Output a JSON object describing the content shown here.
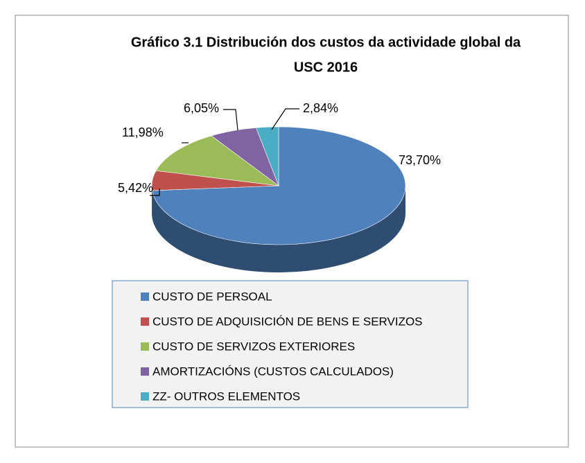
{
  "chart_data": {
    "type": "pie",
    "title": "Gráfico 3.1 Distribución dos custos da actividade global da USC 2016",
    "categories": [
      "CUSTO DE PERSOAL",
      "CUSTO DE ADQUISICIÓN DE BENS E SERVIZOS",
      "CUSTO DE SERVIZOS EXTERIORES",
      "AMORTIZACIÓNS (CUSTOS CALCULADOS)",
      "ZZ- OUTROS ELEMENTOS"
    ],
    "values": [
      73.7,
      5.42,
      11.98,
      6.05,
      2.84
    ],
    "value_labels": [
      "73,70%",
      "5,42%",
      "11,98%",
      "6,05%",
      "2,84%"
    ],
    "colors": [
      "#4f81bd",
      "#c0504d",
      "#9bbb59",
      "#8064a2",
      "#4bacc6"
    ],
    "legend": "bottom"
  }
}
